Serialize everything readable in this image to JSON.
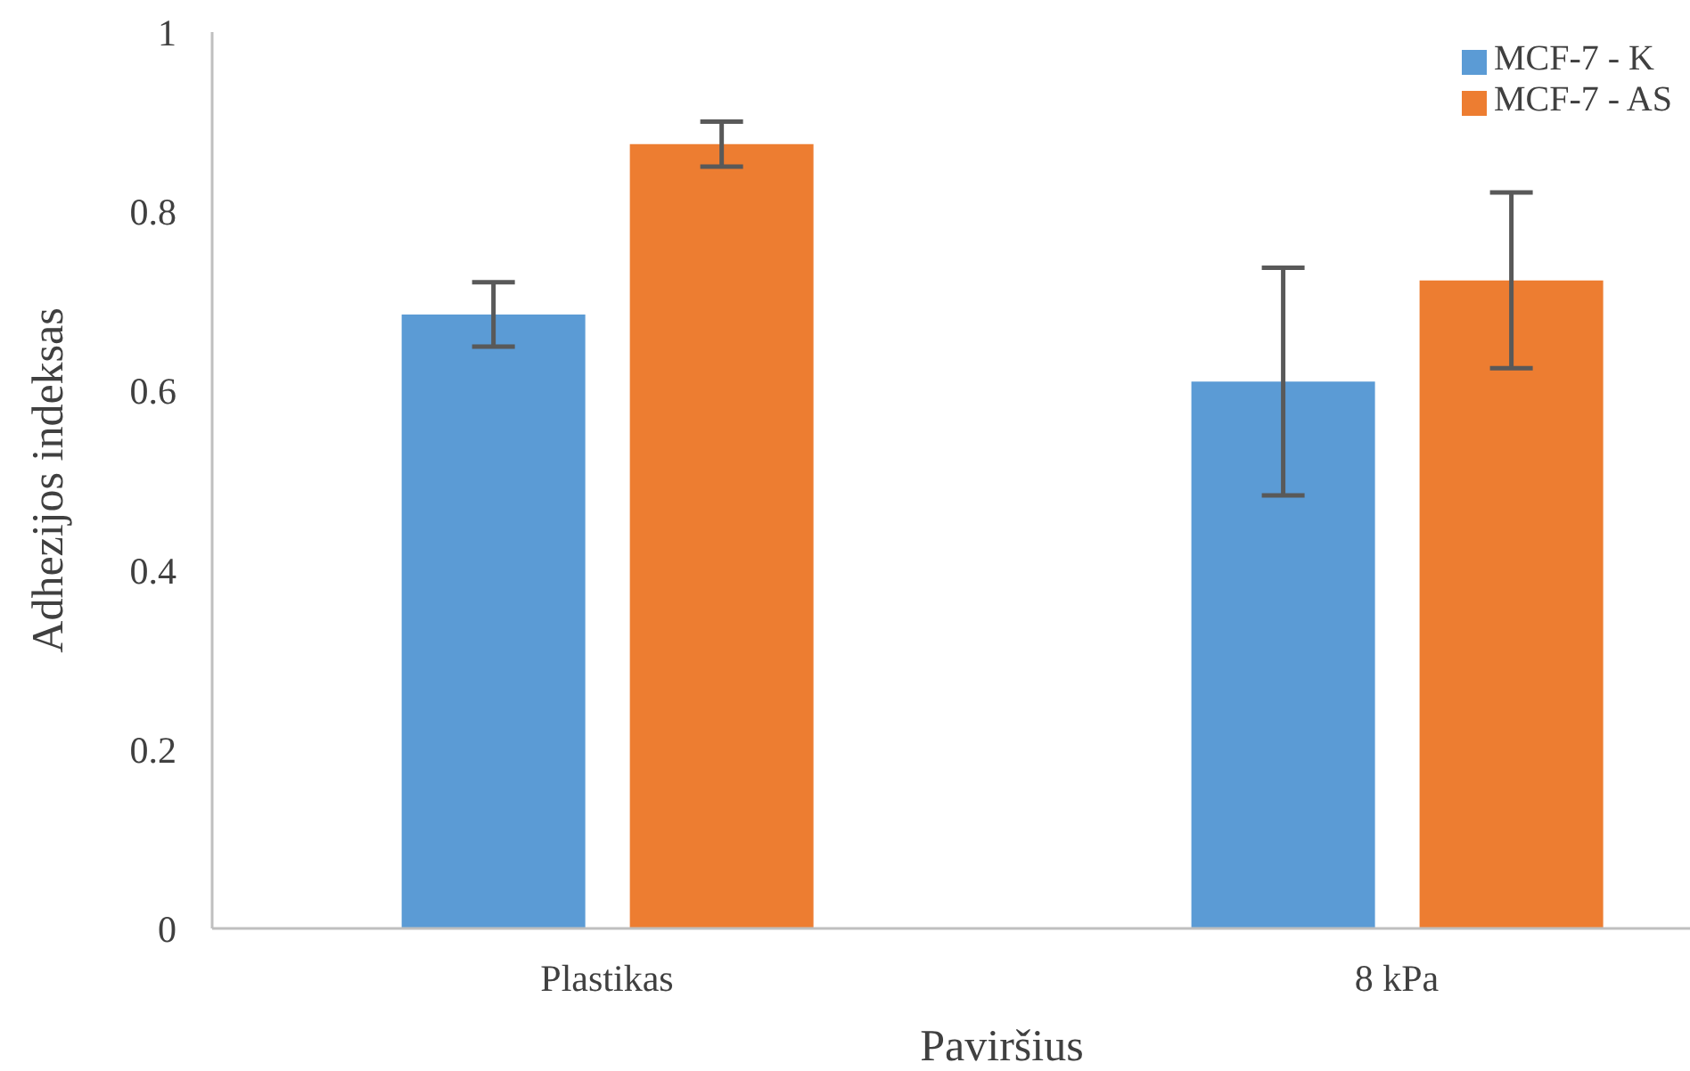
{
  "chart_data": {
    "type": "bar",
    "xlabel": "Paviršius",
    "ylabel": "Adhezijos indeksas",
    "categories": [
      "Plastikas",
      "8 kPa"
    ],
    "series": [
      {
        "name": "MCF-7 - K",
        "color": "#5b9bd5",
        "values": [
          0.685,
          0.61
        ],
        "errors": [
          0.036,
          0.127
        ]
      },
      {
        "name": "MCF-7 - AS",
        "color": "#ed7d31",
        "values": [
          0.875,
          0.723
        ],
        "errors": [
          0.025,
          0.098
        ]
      }
    ],
    "ylim": [
      0,
      1
    ],
    "yticks": [
      0,
      0.2,
      0.4,
      0.6,
      0.8,
      1
    ],
    "grid": false,
    "legend": "top right"
  }
}
